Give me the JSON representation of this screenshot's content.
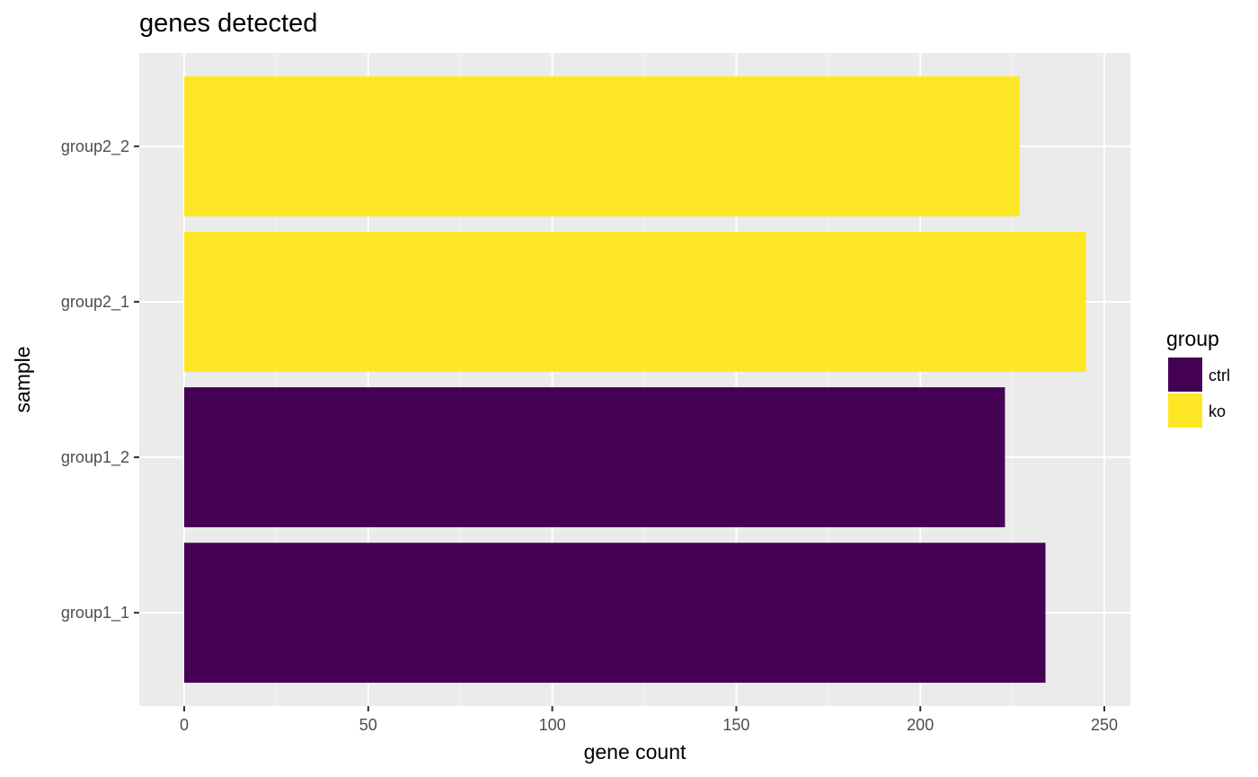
{
  "chart_data": {
    "type": "bar",
    "orientation": "horizontal",
    "title": "genes detected",
    "xlabel": "gene count",
    "ylabel": "sample",
    "categories": [
      "group1_1",
      "group1_2",
      "group2_1",
      "group2_2"
    ],
    "values": [
      234,
      223,
      245,
      227
    ],
    "groups": [
      "ctrl",
      "ctrl",
      "ko",
      "ko"
    ],
    "xlim": [
      0,
      257.25
    ],
    "xticks": [
      0,
      50,
      100,
      150,
      200,
      250
    ],
    "x_minor_ticks": [
      25,
      75,
      125,
      175,
      225
    ],
    "grid": true,
    "legend": {
      "title": "group",
      "position": "right",
      "entries": [
        {
          "label": "ctrl",
          "color": "#440154"
        },
        {
          "label": "ko",
          "color": "#FDE725"
        }
      ]
    },
    "colors": {
      "panel_background": "#EBEBEB",
      "grid_major": "#FFFFFF",
      "ctrl": "#440154",
      "ko": "#FDE725"
    }
  }
}
